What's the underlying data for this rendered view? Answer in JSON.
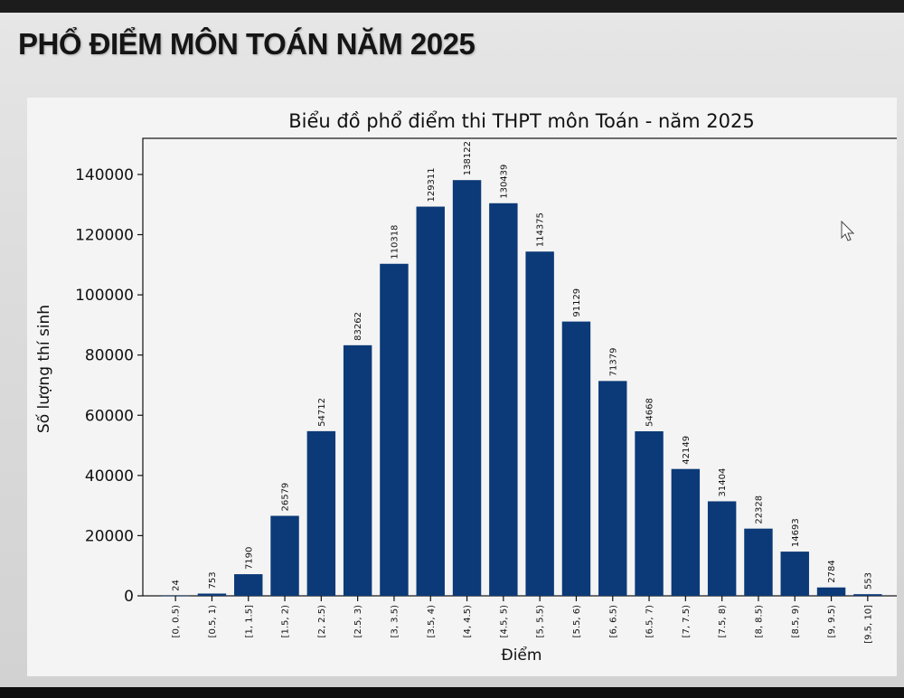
{
  "slide": {
    "title": "PHỔ ĐIỂM MÔN TOÁN NĂM 2025"
  },
  "colors": {
    "bar": "#0c3a78",
    "axis": "#111111",
    "panel": "#f4f4f4"
  },
  "chart_data": {
    "type": "bar",
    "title": "Biểu đồ phổ điểm thi THPT môn Toán - năm 2025",
    "xlabel": "Điểm",
    "ylabel": "Số lượng thí sinh",
    "ylim": [
      0,
      152000
    ],
    "yticks": [
      0,
      20000,
      40000,
      60000,
      80000,
      100000,
      120000,
      140000
    ],
    "grid": false,
    "categories": [
      "[0, 0.5)",
      "[0.5, 1)",
      "[1, 1.5]",
      "[1.5, 2)",
      "[2, 2.5)",
      "[2.5, 3)",
      "[3, 3.5)",
      "[3.5, 4)",
      "[4, 4.5)",
      "[4.5, 5)",
      "[5, 5.5)",
      "[5.5, 6)",
      "[6, 6.5)",
      "[6.5, 7)",
      "[7, 7.5)",
      "[7.5, 8)",
      "[8, 8.5)",
      "[8.5, 9)",
      "[9, 9.5)",
      "[9.5, 10]"
    ],
    "values": [
      24,
      753,
      7190,
      26579,
      54712,
      83262,
      110318,
      129311,
      138122,
      130439,
      114375,
      91129,
      71379,
      54668,
      42149,
      31404,
      22328,
      14693,
      2784,
      553
    ]
  }
}
